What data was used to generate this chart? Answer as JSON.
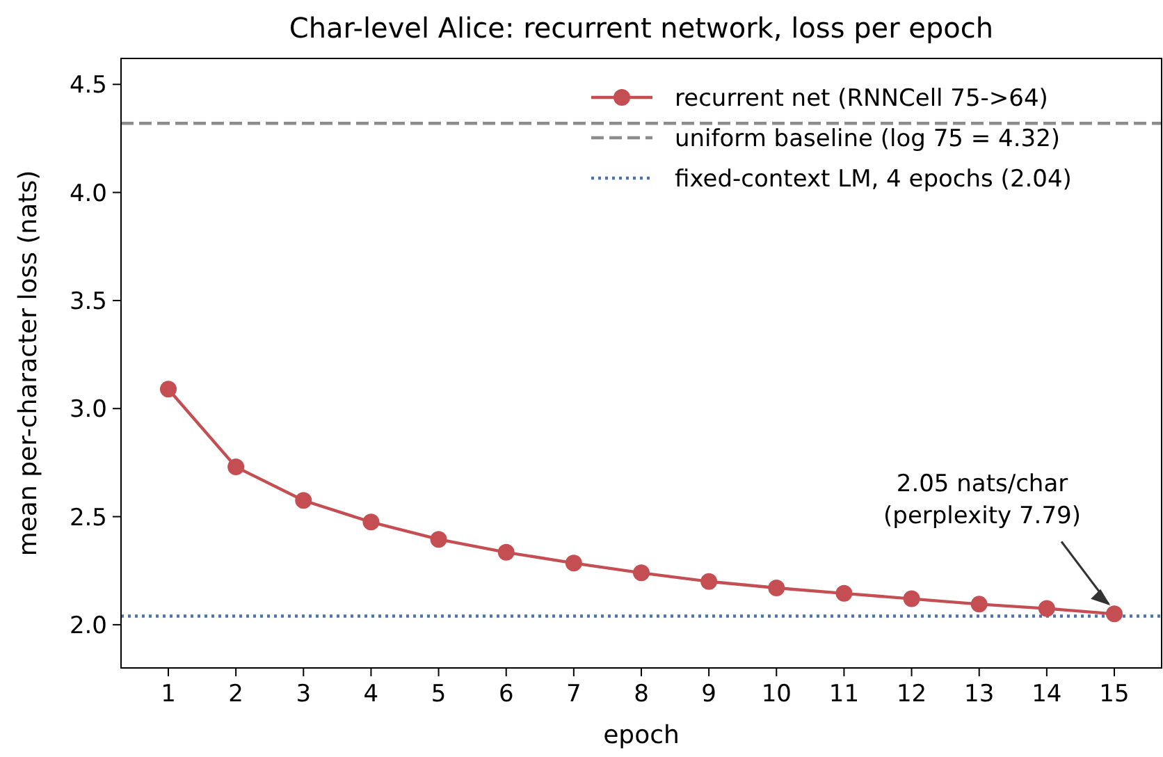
{
  "chart_data": {
    "type": "line",
    "title": "Char-level Alice: recurrent network, loss per epoch",
    "xlabel": "epoch",
    "ylabel": "mean per-character loss (nats)",
    "x": [
      1,
      2,
      3,
      4,
      5,
      6,
      7,
      8,
      9,
      10,
      11,
      12,
      13,
      14,
      15
    ],
    "series": [
      {
        "name": "recurrent net (RNNCell 75->64)",
        "color": "#c44e52",
        "values": [
          3.09,
          2.73,
          2.575,
          2.475,
          2.395,
          2.335,
          2.285,
          2.24,
          2.2,
          2.17,
          2.145,
          2.12,
          2.095,
          2.075,
          2.05
        ]
      }
    ],
    "ref_lines": [
      {
        "axis": "y",
        "value": 4.32,
        "label": "uniform baseline (log 75 = 4.32)",
        "color": "#8c8c8c",
        "line_style": "dashed"
      },
      {
        "axis": "y",
        "value": 2.04,
        "label": "fixed-context LM, 4 epochs (2.04)",
        "color": "#4c72b0",
        "line_style": "dotted"
      }
    ],
    "annotations": [
      {
        "text": "2.05 nats/char\n(perplexity 7.79)",
        "x": 15,
        "y": 2.05
      }
    ],
    "xlim": [
      0.3,
      15.7
    ],
    "ylim": [
      1.8,
      4.62
    ],
    "xticks": [
      1,
      2,
      3,
      4,
      5,
      6,
      7,
      8,
      9,
      10,
      11,
      12,
      13,
      14,
      15
    ],
    "yticks": [
      {
        "value": 2,
        "label": "2.0"
      },
      2.5,
      {
        "value": 3,
        "label": "3.0"
      },
      3.5,
      {
        "value": 4,
        "label": "4.0"
      },
      4.5
    ],
    "marker": "circle",
    "line_style": "solid",
    "grid": false,
    "legend": "top right"
  }
}
